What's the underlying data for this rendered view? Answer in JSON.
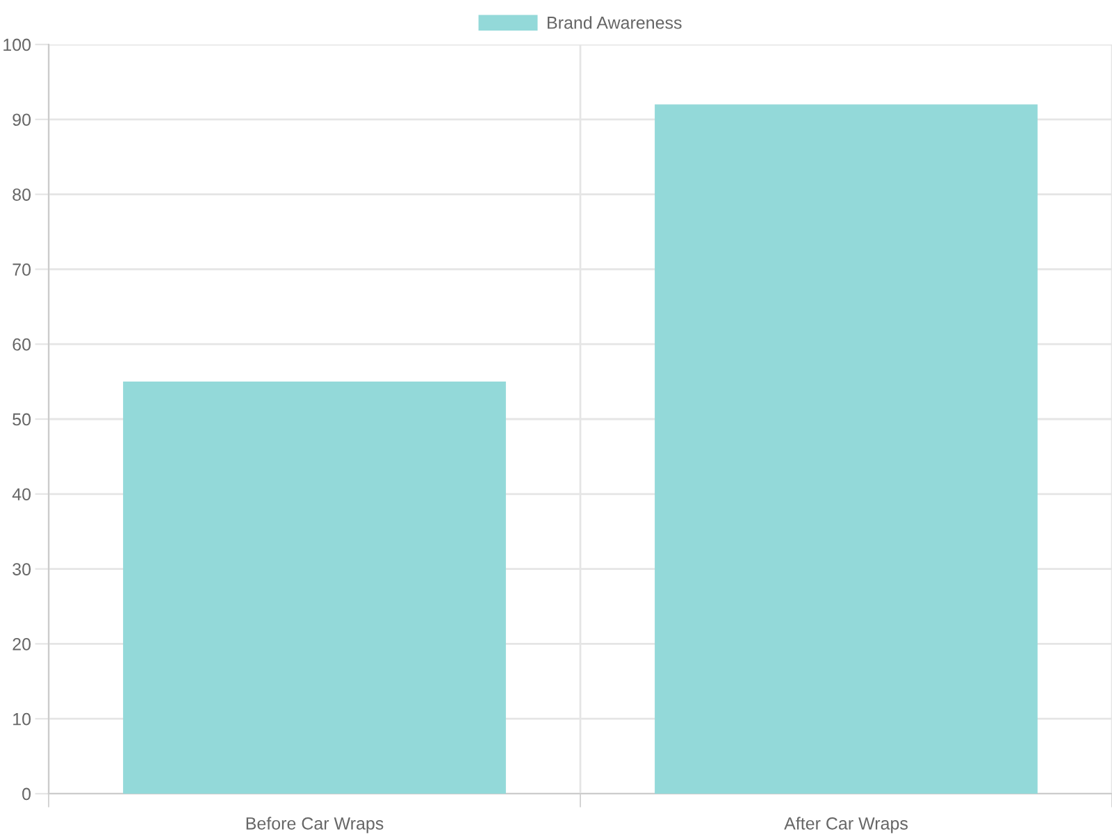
{
  "chart_data": {
    "type": "bar",
    "categories": [
      "Before Car Wraps",
      "After Car Wraps"
    ],
    "series": [
      {
        "name": "Brand Awareness",
        "color": "#93d9d9",
        "values": [
          55,
          92
        ]
      }
    ],
    "ylim": [
      0,
      100
    ],
    "yticks": [
      0,
      10,
      20,
      30,
      40,
      50,
      60,
      70,
      80,
      90,
      100
    ],
    "grid": true,
    "legend": "top"
  }
}
